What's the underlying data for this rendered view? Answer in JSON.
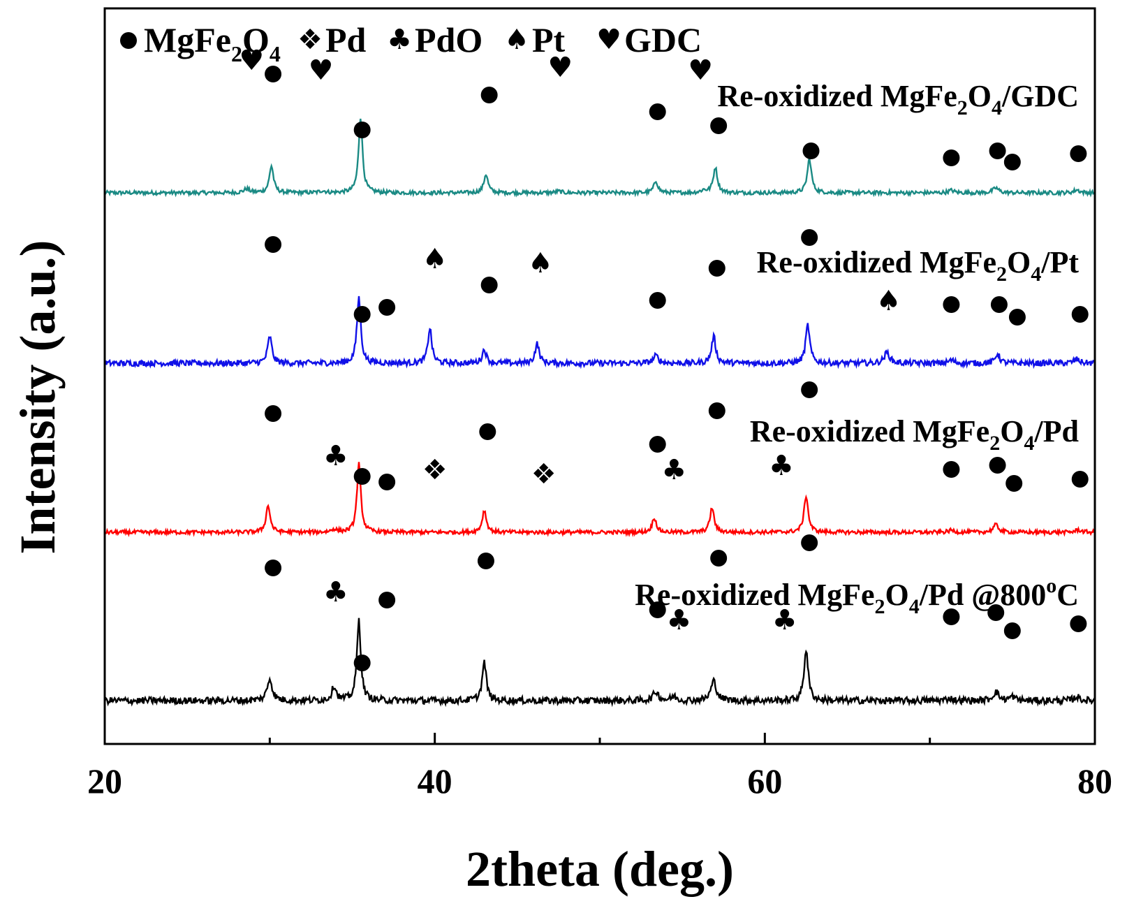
{
  "chart_data": {
    "type": "line",
    "xlabel": "2theta (deg.)",
    "ylabel": "Intensity (a.u.)",
    "xlim": [
      20,
      80
    ],
    "xticks": [
      20,
      40,
      60,
      80
    ],
    "minor_xticks": [
      30,
      50,
      70
    ],
    "y_ticks_shown": false,
    "grid": false,
    "legend": {
      "placement": "top-left",
      "entries": [
        {
          "key": "mgfe2o4",
          "symbol": "●",
          "label_parts": [
            "MgFe",
            "2",
            "O",
            "4"
          ]
        },
        {
          "key": "pd",
          "symbol": "❖",
          "label": "Pd"
        },
        {
          "key": "pdo",
          "symbol": "♣",
          "label": "PdO"
        },
        {
          "key": "pt",
          "symbol": "♠",
          "label": "Pt"
        },
        {
          "key": "gdc",
          "symbol": "♥",
          "label": "GDC"
        }
      ]
    },
    "series": [
      {
        "name_parts": [
          "Re-oxidized MgFe",
          "2",
          "O",
          "4",
          "/GDC"
        ],
        "color": "#1a8a84",
        "baseline": 0.0,
        "noise": 0.04,
        "peaks": [
          [
            28.6,
            0.08,
            0.2
          ],
          [
            30.1,
            0.55,
            0.15
          ],
          [
            33.2,
            0.04,
            0.2
          ],
          [
            35.5,
            1.55,
            0.14
          ],
          [
            43.1,
            0.38,
            0.15
          ],
          [
            47.5,
            0.03,
            0.2
          ],
          [
            53.4,
            0.24,
            0.15
          ],
          [
            56.3,
            0.05,
            0.2
          ],
          [
            57.0,
            0.52,
            0.15
          ],
          [
            62.7,
            0.7,
            0.15
          ],
          [
            71.3,
            0.05,
            0.2
          ],
          [
            74.0,
            0.1,
            0.2
          ],
          [
            78.9,
            0.06,
            0.2
          ]
        ],
        "markers": [
          {
            "x": 28.9,
            "sym": "♥",
            "dy": 0.95
          },
          {
            "x": 30.2,
            "sym": "●",
            "dy": 0.85
          },
          {
            "x": 33.1,
            "sym": "♥",
            "dy": 0.88
          },
          {
            "x": 35.6,
            "sym": "●",
            "dy": 0.45
          },
          {
            "x": 43.3,
            "sym": "●",
            "dy": 0.7
          },
          {
            "x": 47.6,
            "sym": "♥",
            "dy": 0.9
          },
          {
            "x": 53.5,
            "sym": "●",
            "dy": 0.58
          },
          {
            "x": 56.1,
            "sym": "♥",
            "dy": 0.88
          },
          {
            "x": 57.2,
            "sym": "●",
            "dy": 0.48
          },
          {
            "x": 62.8,
            "sym": "●",
            "dy": 0.3
          },
          {
            "x": 71.3,
            "sym": "●",
            "dy": 0.25
          },
          {
            "x": 74.1,
            "sym": "●",
            "dy": 0.3
          },
          {
            "x": 75.0,
            "sym": "●",
            "dy": 0.22
          },
          {
            "x": 79.0,
            "sym": "●",
            "dy": 0.28
          }
        ]
      },
      {
        "name_parts": [
          "Re-oxidized MgFe",
          "2",
          "O",
          "4",
          "/Pt"
        ],
        "color": "#1010e8",
        "baseline": 0.0,
        "noise": 0.06,
        "peaks": [
          [
            30.0,
            0.55,
            0.15
          ],
          [
            35.4,
            1.35,
            0.14
          ],
          [
            39.7,
            0.72,
            0.14
          ],
          [
            43.0,
            0.28,
            0.15
          ],
          [
            46.2,
            0.4,
            0.15
          ],
          [
            53.4,
            0.15,
            0.2
          ],
          [
            56.9,
            0.55,
            0.15
          ],
          [
            62.6,
            0.78,
            0.15
          ],
          [
            67.4,
            0.22,
            0.2
          ],
          [
            71.3,
            0.06,
            0.2
          ],
          [
            74.1,
            0.2,
            0.15
          ],
          [
            78.9,
            0.08,
            0.2
          ]
        ],
        "markers": [
          {
            "x": 30.2,
            "sym": "●",
            "dy": 0.85
          },
          {
            "x": 35.6,
            "sym": "●",
            "dy": 0.35
          },
          {
            "x": 37.1,
            "sym": "●",
            "dy": 0.4
          },
          {
            "x": 40.0,
            "sym": "♠",
            "dy": 0.75
          },
          {
            "x": 43.3,
            "sym": "●",
            "dy": 0.56
          },
          {
            "x": 46.4,
            "sym": "♠",
            "dy": 0.72
          },
          {
            "x": 53.5,
            "sym": "●",
            "dy": 0.45
          },
          {
            "x": 57.1,
            "sym": "●",
            "dy": 0.68
          },
          {
            "x": 62.7,
            "sym": "●",
            "dy": 0.9
          },
          {
            "x": 67.5,
            "sym": "♠",
            "dy": 0.45
          },
          {
            "x": 71.3,
            "sym": "●",
            "dy": 0.42
          },
          {
            "x": 74.2,
            "sym": "●",
            "dy": 0.42
          },
          {
            "x": 75.3,
            "sym": "●",
            "dy": 0.33
          },
          {
            "x": 79.1,
            "sym": "●",
            "dy": 0.35
          }
        ]
      },
      {
        "name_parts": [
          "Re-oxidized MgFe",
          "2",
          "O",
          "4",
          "/Pd"
        ],
        "color": "#ff0000",
        "baseline": 0.0,
        "noise": 0.04,
        "peaks": [
          [
            29.9,
            0.55,
            0.15
          ],
          [
            33.9,
            0.06,
            0.2
          ],
          [
            35.4,
            1.4,
            0.14
          ],
          [
            43.0,
            0.45,
            0.15
          ],
          [
            53.3,
            0.3,
            0.15
          ],
          [
            56.8,
            0.5,
            0.15
          ],
          [
            62.5,
            0.75,
            0.15
          ],
          [
            71.3,
            0.04,
            0.2
          ],
          [
            74.0,
            0.15,
            0.2
          ],
          [
            79.0,
            0.05,
            0.2
          ]
        ],
        "markers": [
          {
            "x": 30.2,
            "sym": "●",
            "dy": 0.85
          },
          {
            "x": 34.0,
            "sym": "♣",
            "dy": 0.55
          },
          {
            "x": 35.6,
            "sym": "●",
            "dy": 0.4
          },
          {
            "x": 37.1,
            "sym": "●",
            "dy": 0.36
          },
          {
            "x": 40.0,
            "sym": "❖",
            "dy": 0.45
          },
          {
            "x": 43.2,
            "sym": "●",
            "dy": 0.72
          },
          {
            "x": 46.6,
            "sym": "❖",
            "dy": 0.42
          },
          {
            "x": 53.5,
            "sym": "●",
            "dy": 0.63
          },
          {
            "x": 54.5,
            "sym": "♣",
            "dy": 0.45
          },
          {
            "x": 57.1,
            "sym": "●",
            "dy": 0.87
          },
          {
            "x": 61.0,
            "sym": "♣",
            "dy": 0.48
          },
          {
            "x": 62.7,
            "sym": "●",
            "dy": 1.02
          },
          {
            "x": 71.3,
            "sym": "●",
            "dy": 0.45
          },
          {
            "x": 74.1,
            "sym": "●",
            "dy": 0.48
          },
          {
            "x": 75.1,
            "sym": "●",
            "dy": 0.35
          },
          {
            "x": 79.1,
            "sym": "●",
            "dy": 0.38
          }
        ]
      },
      {
        "name_parts": [
          "Re-oxidized MgFe",
          "2",
          "O",
          "4",
          "/Pd @800",
          "o",
          "C"
        ],
        "color": "#000000",
        "baseline": 0.0,
        "noise": 0.07,
        "peaks": [
          [
            30.0,
            0.45,
            0.18
          ],
          [
            33.9,
            0.3,
            0.16
          ],
          [
            35.4,
            1.65,
            0.14
          ],
          [
            43.0,
            0.78,
            0.15
          ],
          [
            53.4,
            0.18,
            0.2
          ],
          [
            54.5,
            0.08,
            0.2
          ],
          [
            56.9,
            0.4,
            0.2
          ],
          [
            62.5,
            1.05,
            0.15
          ],
          [
            71.2,
            0.05,
            0.2
          ],
          [
            74.0,
            0.18,
            0.2
          ],
          [
            75.0,
            0.08,
            0.2
          ],
          [
            78.9,
            0.08,
            0.2
          ]
        ],
        "markers": [
          {
            "x": 30.2,
            "sym": "●",
            "dy": 0.95
          },
          {
            "x": 34.0,
            "sym": "♣",
            "dy": 0.78
          },
          {
            "x": 35.6,
            "sym": "●",
            "dy": 0.27
          },
          {
            "x": 37.1,
            "sym": "●",
            "dy": 0.72
          },
          {
            "x": 43.1,
            "sym": "●",
            "dy": 1.0
          },
          {
            "x": 53.5,
            "sym": "●",
            "dy": 0.65
          },
          {
            "x": 54.8,
            "sym": "♣",
            "dy": 0.58
          },
          {
            "x": 57.2,
            "sym": "●",
            "dy": 1.02
          },
          {
            "x": 61.2,
            "sym": "♣",
            "dy": 0.58
          },
          {
            "x": 62.7,
            "sym": "●",
            "dy": 1.13
          },
          {
            "x": 71.3,
            "sym": "●",
            "dy": 0.6
          },
          {
            "x": 74.0,
            "sym": "●",
            "dy": 0.63
          },
          {
            "x": 75.0,
            "sym": "●",
            "dy": 0.5
          },
          {
            "x": 79.0,
            "sym": "●",
            "dy": 0.55
          }
        ]
      }
    ]
  }
}
